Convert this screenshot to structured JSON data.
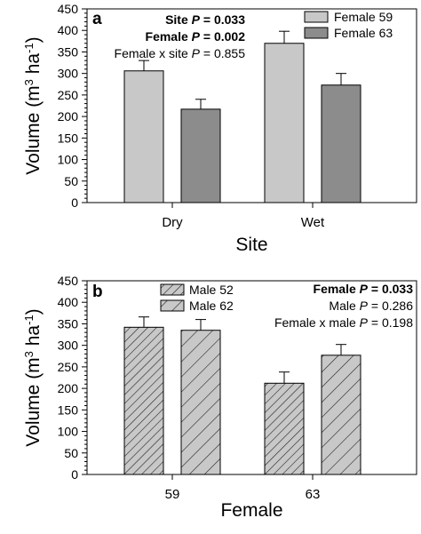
{
  "chart_data": [
    {
      "panel": "a",
      "type": "bar",
      "categories": [
        "Dry",
        "Wet"
      ],
      "series": [
        {
          "name": "Female 59",
          "values": [
            306,
            370
          ],
          "errors": [
            24,
            28
          ],
          "color": "#c8c8c8",
          "pattern": "none"
        },
        {
          "name": "Female 63",
          "values": [
            217,
            273
          ],
          "errors": [
            23,
            27
          ],
          "color": "#8c8c8c",
          "pattern": "none"
        }
      ],
      "xlabel": "Site",
      "ylabel": "Volume (m³ ha⁻¹)",
      "ylabel_parts": {
        "pre": "Volume (m",
        "sup1": "3",
        "mid": " ha",
        "sup2": "-1",
        "post": ")"
      },
      "ylim": [
        0,
        450
      ],
      "yticks": [
        "0",
        "50",
        "100",
        "150",
        "200",
        "250",
        "300",
        "350",
        "400",
        "450"
      ],
      "legend_position": "top-right",
      "stats": [
        {
          "label": "Site ",
          "p": "P",
          "value": " = 0.033",
          "bold": true
        },
        {
          "label": "Female ",
          "p": "P",
          "value": " = 0.002",
          "bold": true
        },
        {
          "label": "Female x site ",
          "p": "P",
          "value": " = 0.855",
          "bold": false
        }
      ]
    },
    {
      "panel": "b",
      "type": "bar",
      "categories": [
        "59",
        "63"
      ],
      "series": [
        {
          "name": "Male 52",
          "values": [
            342,
            212
          ],
          "errors": [
            24,
            26
          ],
          "color": "#c8c8c8",
          "pattern": "dense-hatch"
        },
        {
          "name": "Male 62",
          "values": [
            335,
            277
          ],
          "errors": [
            25,
            25
          ],
          "color": "#c8c8c8",
          "pattern": "sparse-hatch"
        }
      ],
      "xlabel": "Female",
      "ylabel": "Volume (m³ ha⁻¹)",
      "ylabel_parts": {
        "pre": "Volume (m",
        "sup1": "3",
        "mid": " ha",
        "sup2": "-1",
        "post": ")"
      },
      "ylim": [
        0,
        450
      ],
      "yticks": [
        "0",
        "50",
        "100",
        "150",
        "200",
        "250",
        "300",
        "350",
        "400",
        "450"
      ],
      "legend_position": "top-left",
      "stats": [
        {
          "label": "Female ",
          "p": "P",
          "value": " = 0.033",
          "bold": true
        },
        {
          "label": "Male ",
          "p": "P",
          "value": " = 0.286",
          "bold": false
        },
        {
          "label": "Female x male ",
          "p": "P",
          "value": " = 0.198",
          "bold": false
        }
      ]
    }
  ]
}
